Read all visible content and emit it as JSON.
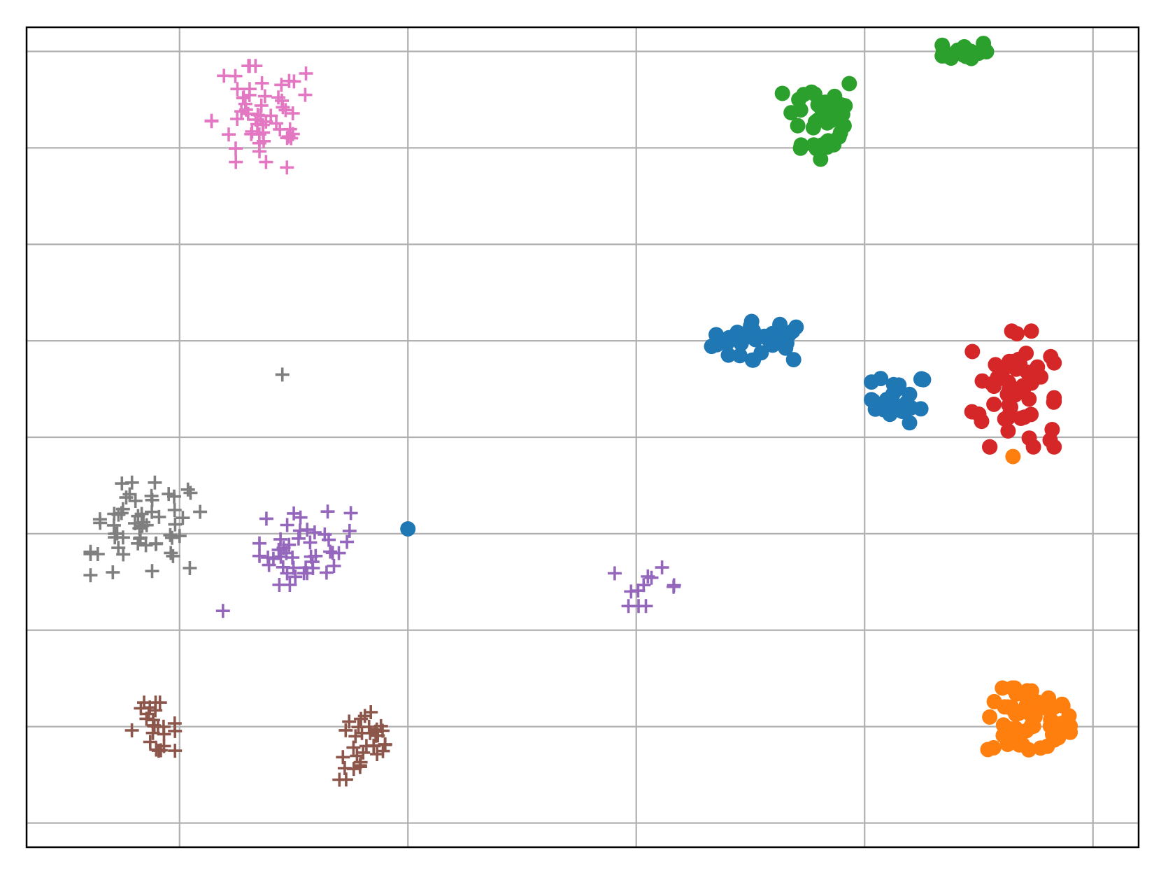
{
  "chart_data": {
    "type": "scatter",
    "title": "",
    "xlabel": "",
    "ylabel": "",
    "xlim": [
      -0.67,
      4.2
    ],
    "ylim": [
      -0.25,
      8.25
    ],
    "xticks": [
      0,
      1,
      2,
      3,
      4
    ],
    "yticks": [
      0,
      1,
      2,
      3,
      4,
      5,
      6,
      7,
      8
    ],
    "tick_labels_visible": false,
    "grid": true,
    "legend": "none",
    "series": [
      {
        "color": "#1f77b4",
        "marker": "circle",
        "clusters": [
          {
            "center": [
              2.55,
              5.0
            ],
            "spread": [
              0.22,
              0.2
            ],
            "count": 34
          },
          {
            "center": [
              3.15,
              4.4
            ],
            "spread": [
              0.12,
              0.25
            ],
            "count": 24
          },
          {
            "center": [
              1.0,
              3.05
            ],
            "spread": [
              0.0,
              0.0
            ],
            "count": 1
          }
        ]
      },
      {
        "color": "#ff7f0e",
        "marker": "circle",
        "clusters": [
          {
            "center": [
              3.72,
              1.05
            ],
            "spread": [
              0.18,
              0.35
            ],
            "count": 58
          },
          {
            "center": [
              3.65,
              3.8
            ],
            "spread": [
              0.0,
              0.0
            ],
            "count": 1
          }
        ]
      },
      {
        "color": "#2ca02c",
        "marker": "circle",
        "clusters": [
          {
            "center": [
              2.8,
              7.3
            ],
            "spread": [
              0.16,
              0.45
            ],
            "count": 40
          },
          {
            "center": [
              3.44,
              8.0
            ],
            "spread": [
              0.1,
              0.1
            ],
            "count": 18
          }
        ]
      },
      {
        "color": "#d62728",
        "marker": "circle",
        "clusters": [
          {
            "center": [
              3.65,
              4.5
            ],
            "spread": [
              0.18,
              0.6
            ],
            "count": 58
          }
        ]
      },
      {
        "color": "#9467bd",
        "marker": "plus",
        "clusters": [
          {
            "center": [
              0.55,
              2.85
            ],
            "spread": [
              0.2,
              0.38
            ],
            "count": 45
          },
          {
            "center": [
              2.04,
              2.45
            ],
            "spread": [
              0.14,
              0.2
            ],
            "count": 12
          },
          {
            "center": [
              0.19,
              2.2
            ],
            "spread": [
              0.0,
              0.0
            ],
            "count": 1
          }
        ]
      },
      {
        "color": "#8c564b",
        "marker": "plus",
        "clusters": [
          {
            "center": [
              -0.12,
              1.0
            ],
            "spread": [
              0.1,
              0.25
            ],
            "count": 24
          },
          {
            "center": [
              0.82,
              0.8
            ],
            "spread": [
              0.12,
              0.35
            ],
            "count": 34
          }
        ]
      },
      {
        "color": "#e377c2",
        "marker": "plus",
        "clusters": [
          {
            "center": [
              0.36,
              7.3
            ],
            "spread": [
              0.22,
              0.55
            ],
            "count": 56
          }
        ]
      },
      {
        "color": "#7f7f7f",
        "marker": "plus",
        "clusters": [
          {
            "center": [
              -0.15,
              3.05
            ],
            "spread": [
              0.24,
              0.48
            ],
            "count": 56
          },
          {
            "center": [
              0.45,
              4.65
            ],
            "spread": [
              0.0,
              0.0
            ],
            "count": 1
          }
        ]
      }
    ]
  }
}
